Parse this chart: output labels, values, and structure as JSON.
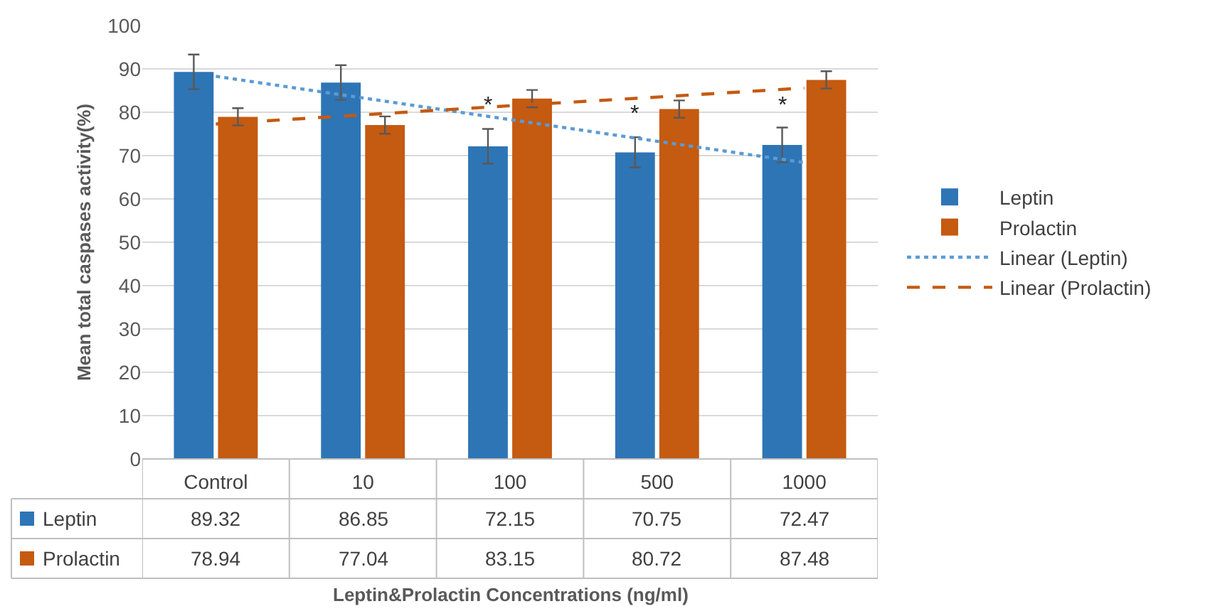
{
  "chart_data": {
    "type": "bar",
    "ylabel": "Mean total caspases activity(%)",
    "categories": [
      "Control",
      "10",
      "100",
      "500",
      "1000"
    ],
    "series": [
      {
        "name": "Leptin",
        "color": "#2e75b6",
        "values": [
          89.32,
          86.85,
          72.15,
          70.75,
          72.47
        ],
        "value_labels": [
          "89.32",
          "86.85",
          "72.15",
          "70.75",
          "72.47"
        ],
        "errors": [
          4,
          4,
          4,
          3.5,
          4
        ]
      },
      {
        "name": "Prolactin",
        "color": "#c55a11",
        "values": [
          78.94,
          77.04,
          83.15,
          80.72,
          87.48
        ],
        "value_labels": [
          "78.94",
          "77.04",
          "83.15",
          "80.72",
          "87.48"
        ],
        "errors": [
          2,
          2,
          2,
          2,
          2
        ]
      },
      {
        "name": "Linear (Leptin)",
        "type": "line",
        "color": "#5b9bd5",
        "line_style": "dotted",
        "values": [
          88.3,
          83.3,
          78.3,
          73.3,
          68.4
        ]
      },
      {
        "name": "Linear (Prolactin)",
        "type": "line",
        "color": "#c55a11",
        "line_style": "dashed",
        "values": [
          77.3,
          79.4,
          81.5,
          83.5,
          85.6
        ]
      }
    ],
    "annotations": [
      "Leptin&Prolactin Concentrations (ng/ml)",
      {
        "text": "*",
        "x": "100",
        "y": 78
      },
      {
        "text": "*",
        "x": "500",
        "y": 76
      },
      {
        "text": "*",
        "x": "1000",
        "y": 78
      }
    ],
    "ylim": [
      0,
      100
    ],
    "yticks": [
      0,
      10,
      20,
      30,
      40,
      50,
      60,
      70,
      80,
      90,
      100
    ],
    "grid": "y",
    "legend": "right"
  }
}
